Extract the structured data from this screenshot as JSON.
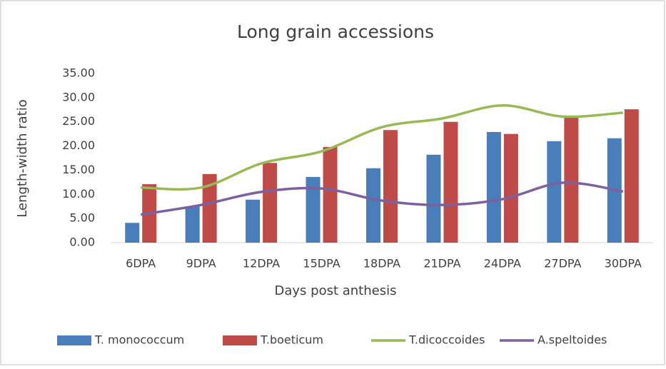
{
  "chart_data": {
    "type": "bar-line",
    "title": "Long grain accessions",
    "x_label": "Days post anthesis",
    "y_label": "Length-width ratio",
    "categories": [
      "6DPA",
      "9DPA",
      "12DPA",
      "15DPA",
      "18DPA",
      "21DPA",
      "24DPA",
      "27DPA",
      "30DPA"
    ],
    "series": [
      {
        "name": "T. monococcum",
        "type": "bar",
        "color": "#4a7ebb",
        "values": [
          4.1,
          7.5,
          8.9,
          13.6,
          15.4,
          18.2,
          22.9,
          21.0,
          21.6
        ]
      },
      {
        "name": "T.boeticum",
        "type": "bar",
        "color": "#be4b48",
        "values": [
          12.1,
          14.2,
          16.5,
          19.8,
          23.3,
          25.0,
          22.5,
          26.0,
          27.6
        ]
      },
      {
        "name": "T.dicoccoides",
        "type": "line",
        "color": "#98b954",
        "values": [
          11.4,
          11.4,
          16.4,
          18.9,
          23.9,
          25.7,
          28.4,
          26.1,
          26.9
        ]
      },
      {
        "name": "A.speltoides",
        "type": "line",
        "color": "#7d60a0",
        "values": [
          5.8,
          7.8,
          10.5,
          11.2,
          8.7,
          7.8,
          9.0,
          12.4,
          10.6
        ]
      }
    ],
    "ylim": [
      0,
      35
    ],
    "yticks": [
      {
        "value": 0,
        "label": "0.00"
      },
      {
        "value": 5,
        "label": "5.00"
      },
      {
        "value": 10,
        "label": "10.00"
      },
      {
        "value": 15,
        "label": "15.00"
      },
      {
        "value": 20,
        "label": "20.00"
      },
      {
        "value": 25,
        "label": "25.00"
      },
      {
        "value": 30,
        "label": "30.00"
      },
      {
        "value": 35,
        "label": "35.00"
      }
    ],
    "grid": false,
    "legend": "bottom"
  }
}
